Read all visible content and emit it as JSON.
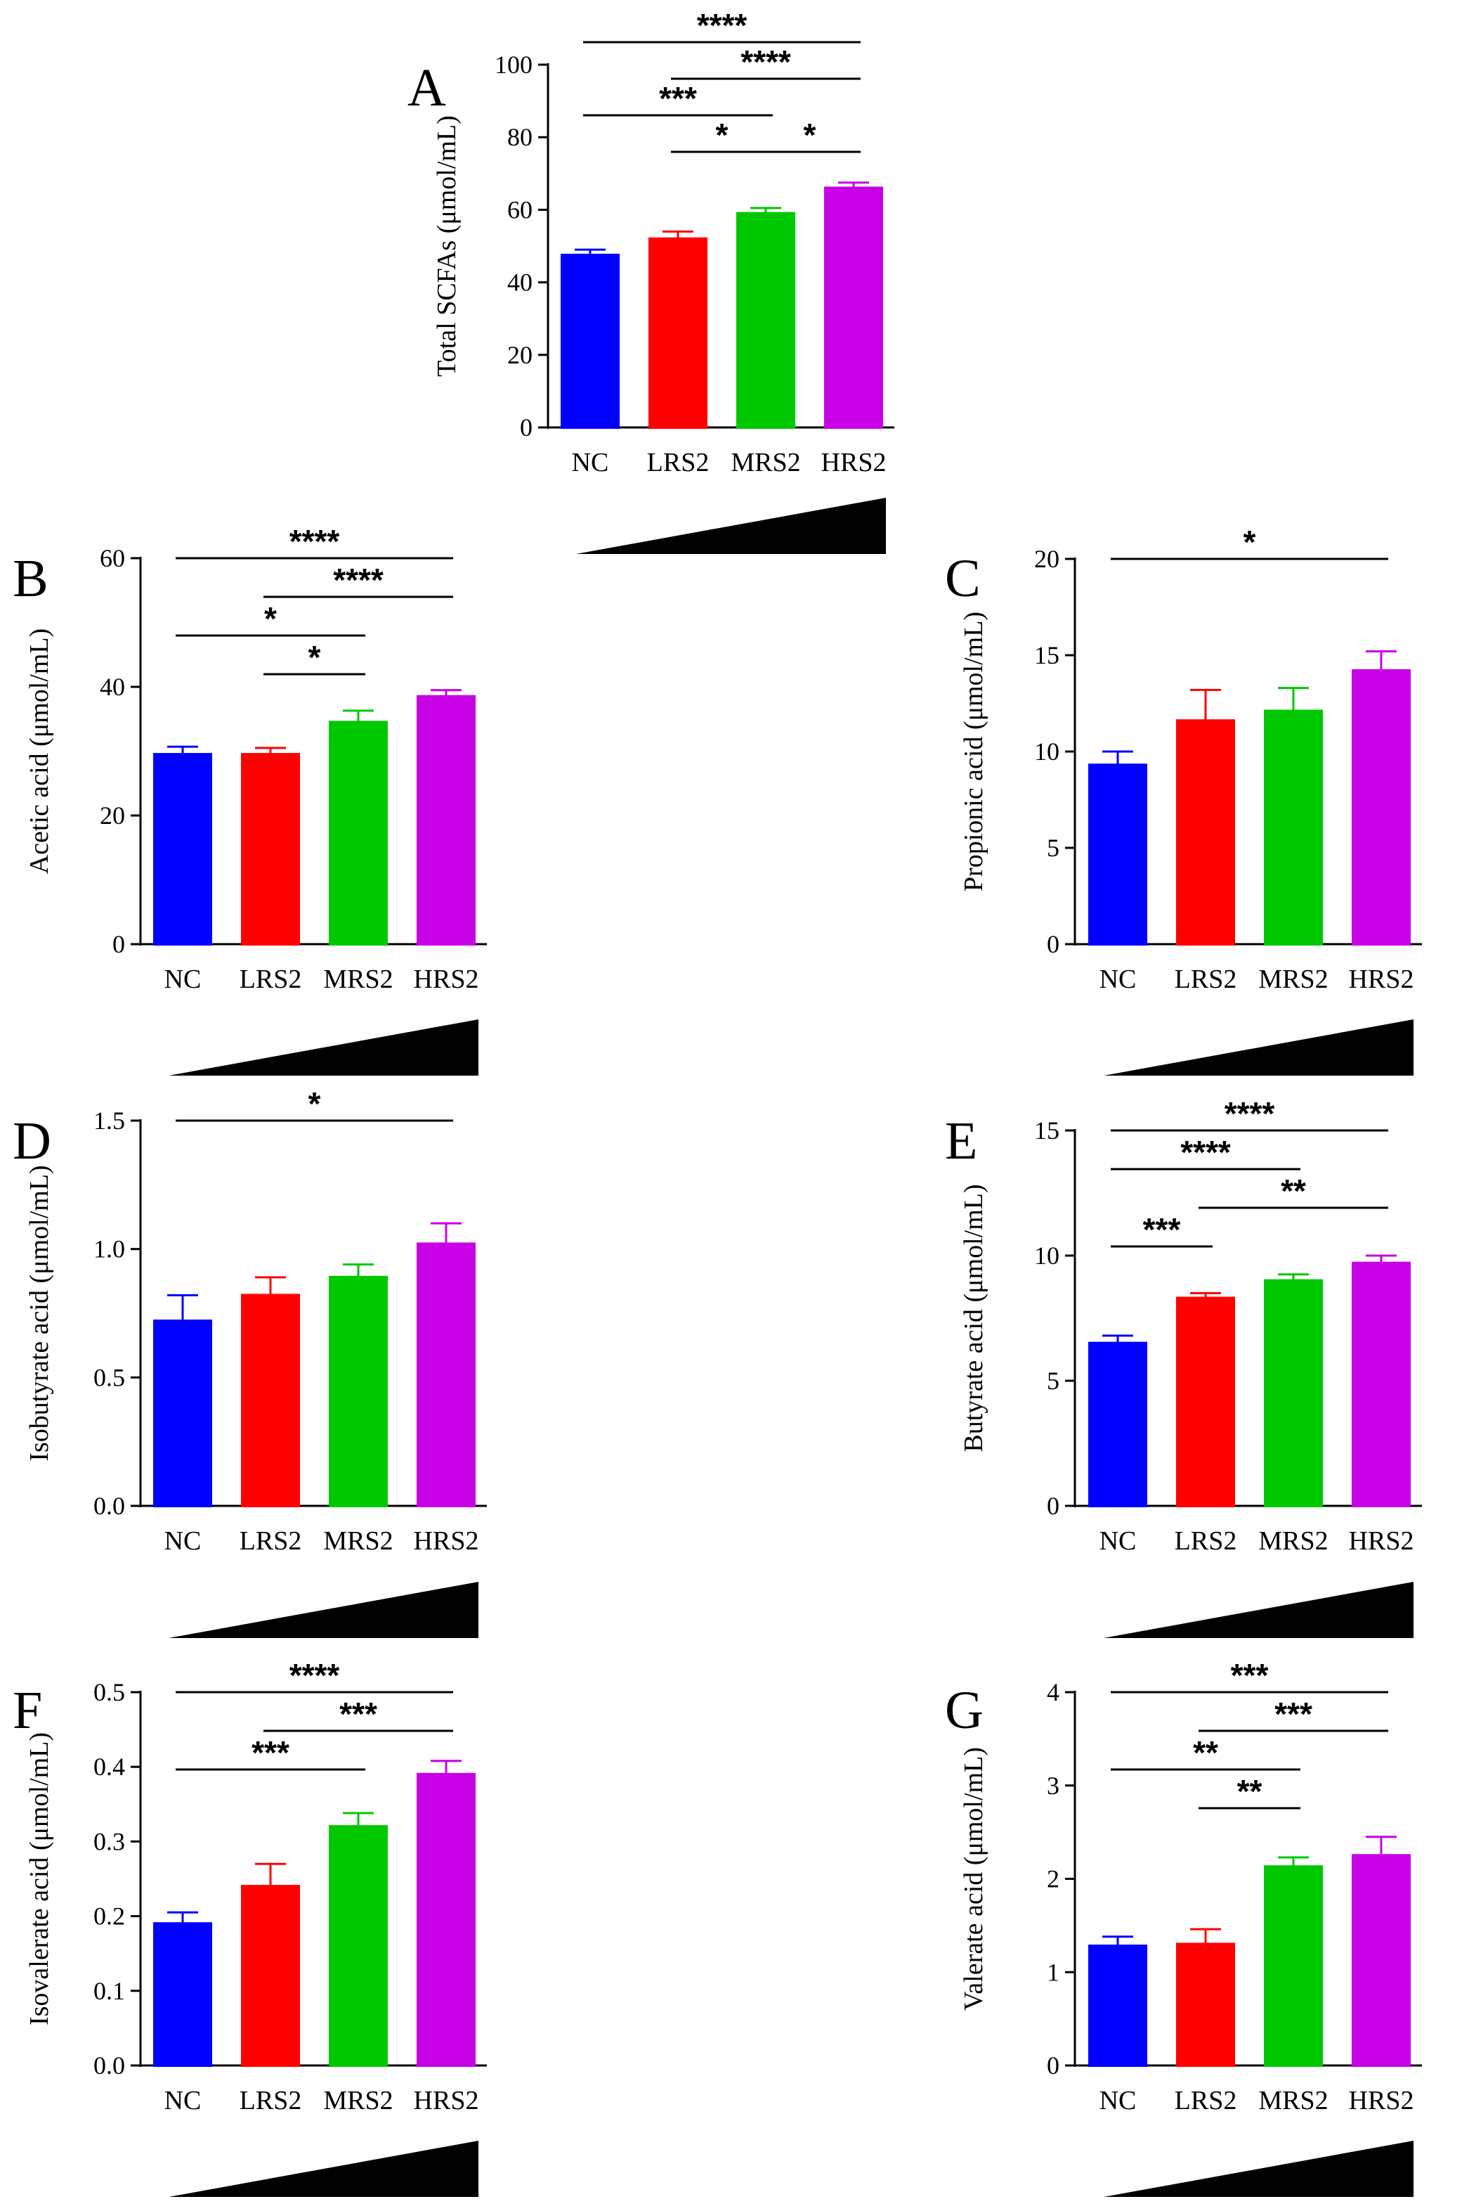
{
  "colors": {
    "NC": "#0000ff",
    "LRS2": "#ff0000",
    "MRS2": "#00c800",
    "HRS2": "#c800e6",
    "axis": "#000000"
  },
  "chart_data": [
    {
      "panel": "A",
      "type": "bar",
      "categories": [
        "NC",
        "LRS2",
        "MRS2",
        "HRS2"
      ],
      "values": [
        47.5,
        52,
        59,
        66
      ],
      "errors": [
        1.5,
        2,
        1.5,
        1.5
      ],
      "ylabel": "Total SCFAs (μmol/mL)",
      "ylim": [
        0,
        100
      ],
      "yticks": [
        0,
        20,
        40,
        60,
        80,
        100
      ],
      "ytick_labels": [
        "0",
        "20",
        "40",
        "60",
        "80",
        "100"
      ],
      "significance": [
        {
          "from": 0,
          "to": 3,
          "label": "****"
        },
        {
          "from": 1,
          "to": 3,
          "label": "****"
        },
        {
          "from": 0,
          "to": 2,
          "label": "***"
        },
        {
          "from": 1,
          "to": 2,
          "label": "*"
        },
        {
          "from": 2,
          "to": 3,
          "label": "*"
        }
      ]
    },
    {
      "panel": "B",
      "type": "bar",
      "categories": [
        "NC",
        "LRS2",
        "MRS2",
        "HRS2"
      ],
      "values": [
        29.5,
        29.5,
        34.5,
        38.5
      ],
      "errors": [
        1.2,
        1,
        1.8,
        1
      ],
      "ylabel": "Acetic acid (μmol/mL)",
      "ylim": [
        0,
        60
      ],
      "yticks": [
        0,
        20,
        40,
        60
      ],
      "ytick_labels": [
        "0",
        "20",
        "40",
        "60"
      ],
      "significance": [
        {
          "from": 0,
          "to": 3,
          "label": "****"
        },
        {
          "from": 1,
          "to": 3,
          "label": "****"
        },
        {
          "from": 0,
          "to": 2,
          "label": "*"
        },
        {
          "from": 1,
          "to": 2,
          "label": "*"
        }
      ]
    },
    {
      "panel": "C",
      "type": "bar",
      "categories": [
        "NC",
        "LRS2",
        "MRS2",
        "HRS2"
      ],
      "values": [
        9.3,
        11.6,
        12.1,
        14.2
      ],
      "errors": [
        0.7,
        1.6,
        1.2,
        1
      ],
      "ylabel": "Propionic acid (μmol/mL)",
      "ylim": [
        0,
        20
      ],
      "yticks": [
        0,
        5,
        10,
        15,
        20
      ],
      "ytick_labels": [
        "0",
        "5",
        "10",
        "15",
        "20"
      ],
      "significance": [
        {
          "from": 0,
          "to": 3,
          "label": "*"
        }
      ]
    },
    {
      "panel": "D",
      "type": "bar",
      "categories": [
        "NC",
        "LRS2",
        "MRS2",
        "HRS2"
      ],
      "values": [
        0.72,
        0.82,
        0.89,
        1.02
      ],
      "errors": [
        0.1,
        0.07,
        0.05,
        0.08
      ],
      "ylabel": "Isobutyrate acid (μmol/mL)",
      "ylim": [
        0,
        1.5
      ],
      "yticks": [
        0,
        0.5,
        1.0,
        1.5
      ],
      "ytick_labels": [
        "0.0",
        "0.5",
        "1.0",
        "1.5"
      ],
      "significance": [
        {
          "from": 0,
          "to": 3,
          "label": "*"
        }
      ]
    },
    {
      "panel": "E",
      "type": "bar",
      "categories": [
        "NC",
        "LRS2",
        "MRS2",
        "HRS2"
      ],
      "values": [
        6.5,
        8.3,
        9.0,
        9.7
      ],
      "errors": [
        0.3,
        0.2,
        0.25,
        0.3
      ],
      "ylabel": "Butyrate acid (μmol/mL)",
      "ylim": [
        0,
        15
      ],
      "yticks": [
        0,
        5,
        10,
        15
      ],
      "ytick_labels": [
        "0",
        "5",
        "10",
        "15"
      ],
      "significance": [
        {
          "from": 0,
          "to": 3,
          "label": "****"
        },
        {
          "from": 0,
          "to": 2,
          "label": "****"
        },
        {
          "from": 1,
          "to": 3,
          "label": "**"
        },
        {
          "from": 0,
          "to": 1,
          "label": "***"
        }
      ]
    },
    {
      "panel": "F",
      "type": "bar",
      "categories": [
        "NC",
        "LRS2",
        "MRS2",
        "HRS2"
      ],
      "values": [
        0.19,
        0.24,
        0.32,
        0.39
      ],
      "errors": [
        0.015,
        0.03,
        0.018,
        0.018
      ],
      "ylabel": "Isovalerate acid (μmol/mL)",
      "ylim": [
        0,
        0.5
      ],
      "yticks": [
        0,
        0.1,
        0.2,
        0.3,
        0.4,
        0.5
      ],
      "ytick_labels": [
        "0.0",
        "0.1",
        "0.2",
        "0.3",
        "0.4",
        "0.5"
      ],
      "significance": [
        {
          "from": 0,
          "to": 3,
          "label": "****"
        },
        {
          "from": 1,
          "to": 3,
          "label": "***"
        },
        {
          "from": 0,
          "to": 2,
          "label": "***"
        }
      ]
    },
    {
      "panel": "G",
      "type": "bar",
      "categories": [
        "NC",
        "LRS2",
        "MRS2",
        "HRS2"
      ],
      "values": [
        1.28,
        1.3,
        2.13,
        2.25
      ],
      "errors": [
        0.1,
        0.16,
        0.1,
        0.2
      ],
      "ylabel": "Valerate acid  (μmol/mL)",
      "ylim": [
        0,
        4
      ],
      "yticks": [
        0,
        1,
        2,
        3,
        4
      ],
      "ytick_labels": [
        "0",
        "1",
        "2",
        "3",
        "4"
      ],
      "significance": [
        {
          "from": 0,
          "to": 3,
          "label": "***"
        },
        {
          "from": 1,
          "to": 3,
          "label": "***"
        },
        {
          "from": 0,
          "to": 2,
          "label": "**"
        },
        {
          "from": 1,
          "to": 2,
          "label": "**"
        }
      ]
    }
  ]
}
